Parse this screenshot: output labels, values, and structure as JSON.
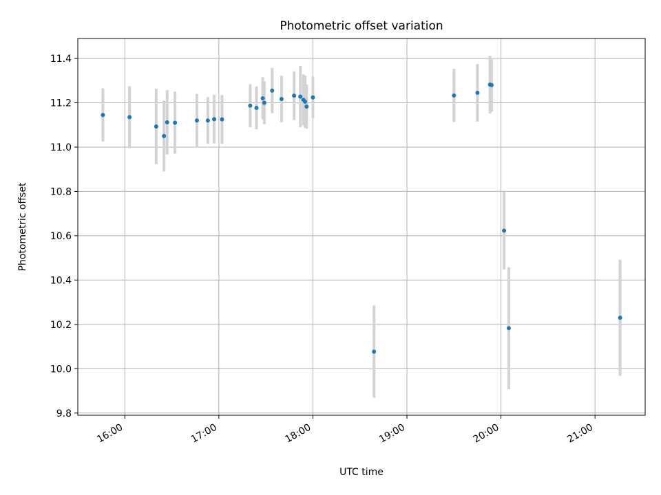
{
  "chart_data": {
    "type": "scatter",
    "title": "Photometric offset variation",
    "xlabel": "UTC time",
    "ylabel": "Photometric offset",
    "x_axis": {
      "type": "time",
      "range": [
        "15:30",
        "21:32"
      ],
      "ticks": [
        "16:00",
        "17:00",
        "18:00",
        "19:00",
        "20:00",
        "21:00"
      ],
      "tick_labels": [
        "16:00",
        "17:00",
        "18:00",
        "19:00",
        "20:00",
        "21:00"
      ]
    },
    "y_axis": {
      "range": [
        9.79,
        11.49
      ],
      "ticks": [
        9.8,
        10.0,
        10.2,
        10.4,
        10.6,
        10.8,
        11.0,
        11.2,
        11.4
      ],
      "tick_labels": [
        "9.8",
        "10.0",
        "10.2",
        "10.4",
        "10.6",
        "10.8",
        "11.0",
        "11.2",
        "11.4"
      ]
    },
    "grid": true,
    "colors": {
      "point": "#1f77b4",
      "errorbar": "#d3d3d3",
      "grid": "#b0b0b0"
    },
    "points": [
      {
        "x": "15:46",
        "y": 11.145,
        "err": 0.12
      },
      {
        "x": "16:03",
        "y": 11.135,
        "err": 0.14
      },
      {
        "x": "16:20",
        "y": 11.093,
        "err": 0.17
      },
      {
        "x": "16:25",
        "y": 11.05,
        "err": 0.16
      },
      {
        "x": "16:27",
        "y": 11.112,
        "err": 0.145
      },
      {
        "x": "16:32",
        "y": 11.11,
        "err": 0.14
      },
      {
        "x": "16:46",
        "y": 11.12,
        "err": 0.12
      },
      {
        "x": "16:53",
        "y": 11.12,
        "err": 0.105
      },
      {
        "x": "16:57",
        "y": 11.126,
        "err": 0.11
      },
      {
        "x": "17:02",
        "y": 11.125,
        "err": 0.11
      },
      {
        "x": "17:20",
        "y": 11.187,
        "err": 0.097
      },
      {
        "x": "17:24",
        "y": 11.177,
        "err": 0.097
      },
      {
        "x": "17:28",
        "y": 11.22,
        "err": 0.095
      },
      {
        "x": "17:29",
        "y": 11.2,
        "err": 0.097
      },
      {
        "x": "17:34",
        "y": 11.255,
        "err": 0.102
      },
      {
        "x": "17:40",
        "y": 11.217,
        "err": 0.105
      },
      {
        "x": "17:48",
        "y": 11.232,
        "err": 0.11
      },
      {
        "x": "17:52",
        "y": 11.228,
        "err": 0.138
      },
      {
        "x": "17:54",
        "y": 11.213,
        "err": 0.115
      },
      {
        "x": "17:55",
        "y": 11.205,
        "err": 0.118
      },
      {
        "x": "17:56",
        "y": 11.183,
        "err": 0.1
      },
      {
        "x": "18:00",
        "y": 11.224,
        "err": 0.095
      },
      {
        "x": "18:39",
        "y": 10.077,
        "err": 0.208
      },
      {
        "x": "19:30",
        "y": 11.233,
        "err": 0.12
      },
      {
        "x": "19:45",
        "y": 11.245,
        "err": 0.13
      },
      {
        "x": "19:53",
        "y": 11.282,
        "err": 0.13
      },
      {
        "x": "19:54",
        "y": 11.28,
        "err": 0.12
      },
      {
        "x": "20:02",
        "y": 10.623,
        "err": 0.175
      },
      {
        "x": "20:05",
        "y": 10.183,
        "err": 0.275
      },
      {
        "x": "21:16",
        "y": 10.23,
        "err": 0.262
      }
    ]
  }
}
